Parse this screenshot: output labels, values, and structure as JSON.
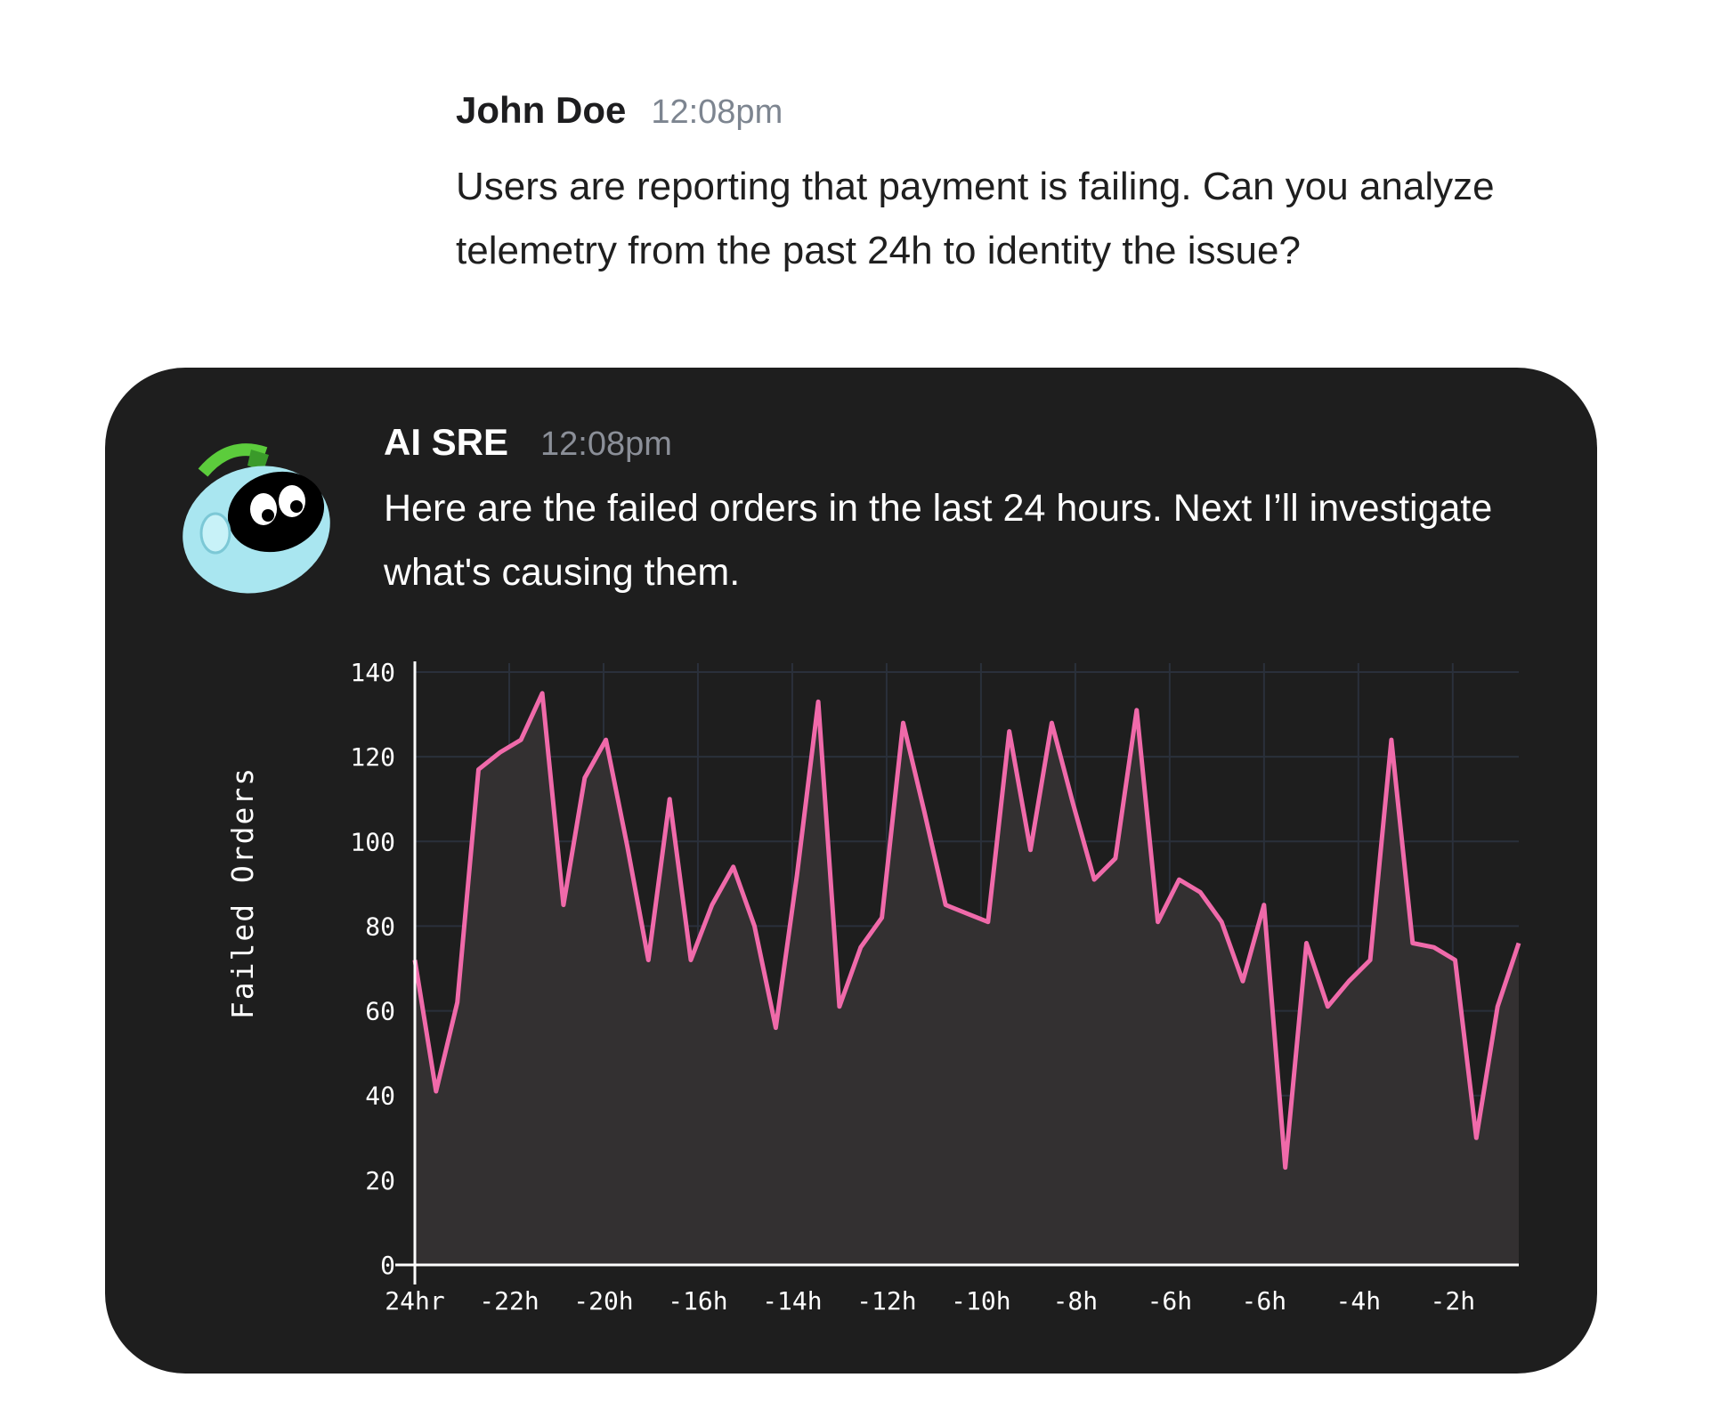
{
  "user_message": {
    "author": "John Doe",
    "time": "12:08pm",
    "text": "Users are reporting that payment is failing. Can you analyze telemetry from the past 24h to identity the issue?"
  },
  "ai_message": {
    "author": "AI SRE",
    "time": "12:08pm",
    "text": "Here are the failed orders in the last 24 hours. Next I’ll investigate what's causing them.",
    "avatar_icon": "robot-avatar-icon"
  },
  "colors": {
    "card_bg": "#1e1e1e",
    "line": "#f06aaa",
    "area": "#333031",
    "grid": "#2a303b",
    "axis": "#ffffff",
    "avatar_body": "#a9e6f0",
    "avatar_antenna": "#5ccc3c"
  },
  "chart_data": {
    "type": "area",
    "ylabel": "Failed Orders",
    "xlabel": "",
    "ylim": [
      0,
      140
    ],
    "yticks": [
      0,
      20,
      40,
      60,
      80,
      100,
      120,
      140
    ],
    "xtick_labels": [
      "24hr",
      "-22h",
      "-20h",
      "-16h",
      "-14h",
      "-12h",
      "-10h",
      "-8h",
      "-6h",
      "-6h",
      "-4h",
      "-2h"
    ],
    "grid": true,
    "series": [
      {
        "values": [
          72,
          41,
          62,
          117,
          121,
          124,
          135,
          85,
          115,
          124,
          99,
          72,
          110,
          72,
          85,
          94,
          80,
          56,
          92,
          133,
          61,
          75,
          82,
          128,
          107,
          85,
          83,
          81,
          126,
          98,
          128,
          109,
          91,
          96,
          131,
          81,
          91,
          88,
          81,
          67,
          85,
          23,
          76,
          61,
          67,
          72,
          124,
          76,
          75,
          72,
          30,
          61,
          76
        ]
      }
    ]
  }
}
